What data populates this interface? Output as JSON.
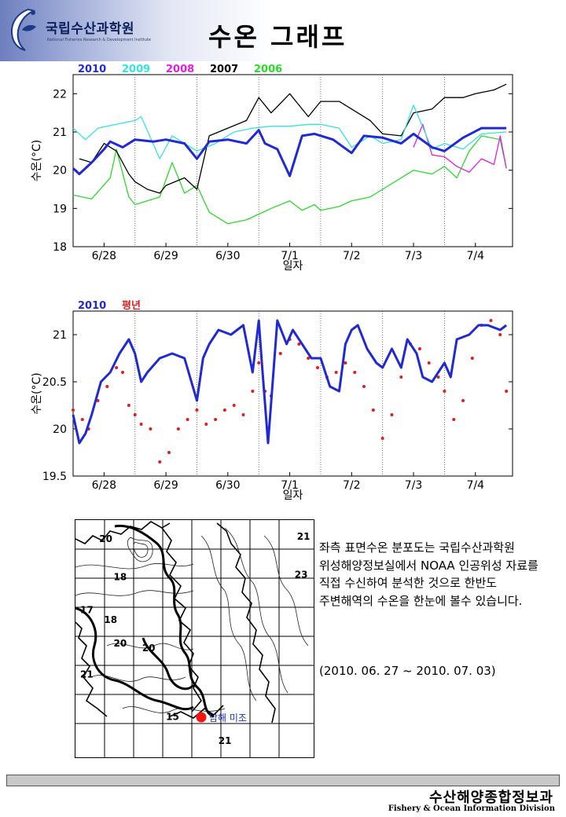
{
  "header": {
    "org_name": "국립수산과학원",
    "org_sub": "National Fisheries Research & Development Institute",
    "title": "수온 그래프"
  },
  "chart_data": [
    {
      "type": "line",
      "xlabel": "일자",
      "ylabel": "수온(°C)",
      "ylim": [
        18,
        22.5
      ],
      "yticks": [
        18,
        19,
        20,
        21,
        22
      ],
      "x_tick_labels": [
        "6/28",
        "6/29",
        "6/30",
        "7/1",
        "7/2",
        "7/3",
        "7/4"
      ],
      "xlim_days": [
        0,
        7.1
      ],
      "grid": "vertical dotted at day boundaries",
      "legend_placement": "top-left",
      "series": [
        {
          "name": "2010",
          "color": "#1f2ad6",
          "width": 3,
          "x": [
            0,
            0.1,
            0.3,
            0.5,
            0.6,
            0.8,
            1.0,
            1.3,
            1.5,
            1.8,
            2.0,
            2.2,
            2.5,
            2.8,
            3.0,
            3.1,
            3.3,
            3.5,
            3.7,
            3.9,
            4.2,
            4.5,
            4.7,
            5.0,
            5.3,
            5.5,
            5.8,
            6.0,
            6.3,
            6.6,
            7.0
          ],
          "y": [
            20.05,
            19.9,
            20.2,
            20.55,
            20.75,
            20.6,
            20.8,
            20.75,
            20.8,
            20.7,
            20.3,
            20.75,
            20.8,
            20.7,
            21.05,
            20.7,
            20.55,
            19.85,
            20.9,
            20.95,
            20.8,
            20.45,
            20.9,
            20.85,
            20.7,
            20.95,
            20.6,
            20.5,
            20.85,
            21.1,
            21.1
          ]
        },
        {
          "name": "2009",
          "color": "#35e2e2",
          "width": 1.3,
          "x": [
            0,
            0.2,
            0.4,
            0.7,
            1.0,
            1.1,
            1.4,
            1.6,
            2.0,
            2.3,
            2.6,
            2.9,
            3.2,
            3.5,
            3.8,
            4.0,
            4.3,
            4.5,
            4.8,
            5.0,
            5.3,
            5.5,
            5.8,
            6.0,
            6.3,
            6.6,
            7.0
          ],
          "y": [
            21.1,
            20.8,
            21.1,
            21.2,
            21.3,
            21.4,
            20.3,
            20.9,
            20.5,
            20.7,
            21.0,
            21.1,
            21.15,
            21.15,
            21.2,
            21.2,
            21.1,
            20.6,
            20.9,
            20.7,
            20.8,
            21.7,
            20.55,
            20.7,
            20.55,
            20.95,
            21.0
          ]
        },
        {
          "name": "2008",
          "color": "#e51ee0",
          "width": 1.3,
          "x": [
            5.5,
            5.65,
            5.8,
            6.0,
            6.2,
            6.4,
            6.6,
            6.8,
            6.9,
            7.0
          ],
          "y": [
            20.6,
            21.2,
            20.4,
            20.35,
            20.1,
            19.95,
            20.3,
            20.15,
            20.9,
            20.05
          ]
        },
        {
          "name": "2007",
          "color": "#000000",
          "width": 1.3,
          "x": [
            0.1,
            0.3,
            0.5,
            0.7,
            0.9,
            1.0,
            1.2,
            1.4,
            1.5,
            1.8,
            2.0,
            2.2,
            2.5,
            2.8,
            3.0,
            3.2,
            3.5,
            3.8,
            4.0,
            4.3,
            4.5,
            4.8,
            5.0,
            5.3,
            5.5,
            5.8,
            6.0,
            6.3,
            6.5,
            6.8,
            7.0
          ],
          "y": [
            20.3,
            20.2,
            20.7,
            20.5,
            19.9,
            19.7,
            19.5,
            19.4,
            19.6,
            19.8,
            19.5,
            20.9,
            21.1,
            21.3,
            21.9,
            21.5,
            22.0,
            21.4,
            21.8,
            21.8,
            21.6,
            21.3,
            20.95,
            20.9,
            21.5,
            21.6,
            21.9,
            21.9,
            22.0,
            22.1,
            22.25
          ]
        },
        {
          "name": "2006",
          "color": "#2adb2a",
          "width": 1.3,
          "x": [
            0,
            0.3,
            0.6,
            0.7,
            0.9,
            1.0,
            1.2,
            1.4,
            1.6,
            1.8,
            2.0,
            2.2,
            2.5,
            2.8,
            3.0,
            3.2,
            3.5,
            3.7,
            3.9,
            4.0,
            4.3,
            4.5,
            4.8,
            5.0,
            5.3,
            5.5,
            5.8,
            6.0,
            6.2,
            6.4,
            6.6,
            6.9,
            7.0
          ],
          "y": [
            19.35,
            19.25,
            19.8,
            20.55,
            19.3,
            19.1,
            19.2,
            19.3,
            20.2,
            19.4,
            19.6,
            18.9,
            18.6,
            18.7,
            18.85,
            19.0,
            19.2,
            18.95,
            19.1,
            18.95,
            19.05,
            19.2,
            19.3,
            19.5,
            19.8,
            20.0,
            19.9,
            20.1,
            19.8,
            20.5,
            20.9,
            20.8,
            20.05
          ]
        }
      ]
    },
    {
      "type": "line",
      "xlabel": "일자",
      "ylabel": "수온(°C)",
      "ylim": [
        19.5,
        21.25
      ],
      "yticks": [
        19.5,
        20,
        20.5,
        21
      ],
      "x_tick_labels": [
        "6/28",
        "6/29",
        "6/30",
        "7/1",
        "7/2",
        "7/3",
        "7/4"
      ],
      "xlim_days": [
        0,
        7.1
      ],
      "grid": "vertical dotted at day boundaries",
      "legend_placement": "top-left",
      "series": [
        {
          "name": "2010",
          "color": "#1f2ad6",
          "width": 3,
          "style": "line",
          "x": [
            0,
            0.1,
            0.2,
            0.3,
            0.45,
            0.6,
            0.75,
            0.9,
            1.0,
            1.1,
            1.2,
            1.4,
            1.6,
            1.8,
            2.0,
            2.1,
            2.2,
            2.35,
            2.55,
            2.75,
            2.9,
            3.0,
            3.05,
            3.15,
            3.3,
            3.45,
            3.55,
            3.7,
            3.85,
            4.0,
            4.15,
            4.3,
            4.4,
            4.5,
            4.6,
            4.75,
            4.9,
            5.0,
            5.15,
            5.3,
            5.4,
            5.55,
            5.65,
            5.8,
            6.0,
            6.1,
            6.2,
            6.4,
            6.55,
            6.7,
            6.9,
            7.0
          ],
          "y": [
            20.15,
            19.85,
            19.95,
            20.15,
            20.5,
            20.6,
            20.8,
            20.95,
            20.8,
            20.5,
            20.6,
            20.75,
            20.8,
            20.75,
            20.3,
            20.75,
            20.9,
            21.05,
            21.0,
            21.1,
            20.6,
            21.15,
            20.7,
            19.85,
            21.15,
            20.9,
            21.05,
            20.9,
            20.75,
            20.75,
            20.45,
            20.4,
            20.9,
            21.05,
            21.1,
            20.85,
            20.7,
            20.65,
            20.85,
            20.65,
            20.95,
            20.8,
            20.55,
            20.5,
            20.7,
            20.55,
            20.95,
            21.0,
            21.1,
            21.1,
            21.05,
            21.1
          ]
        },
        {
          "name": "평년",
          "color": "#e01e1e",
          "style": "dots",
          "x": [
            0,
            0.15,
            0.25,
            0.4,
            0.55,
            0.7,
            0.8,
            0.9,
            1.0,
            1.1,
            1.25,
            1.4,
            1.55,
            1.7,
            1.85,
            2.0,
            2.15,
            2.3,
            2.45,
            2.6,
            2.75,
            2.9,
            3.0,
            3.1,
            3.2,
            3.35,
            3.5,
            3.65,
            3.8,
            3.95,
            4.1,
            4.25,
            4.4,
            4.55,
            4.7,
            4.85,
            5.0,
            5.15,
            5.3,
            5.45,
            5.6,
            5.75,
            5.9,
            6.0,
            6.15,
            6.3,
            6.45,
            6.6,
            6.75,
            6.9,
            7.0
          ],
          "y": [
            20.2,
            20.1,
            20.0,
            20.3,
            20.45,
            20.65,
            20.6,
            20.25,
            20.15,
            20.05,
            20.0,
            19.65,
            19.75,
            20.0,
            20.1,
            20.2,
            20.05,
            20.1,
            20.2,
            20.25,
            20.15,
            20.4,
            20.7,
            20.4,
            20.35,
            20.8,
            20.95,
            20.9,
            20.75,
            20.65,
            20.55,
            20.6,
            20.7,
            20.6,
            20.45,
            20.2,
            19.9,
            20.15,
            20.55,
            20.9,
            20.85,
            20.7,
            20.55,
            20.4,
            20.1,
            20.3,
            20.75,
            21.1,
            21.15,
            21.0,
            20.4
          ]
        }
      ]
    }
  ],
  "map": {
    "contour_labels": [
      {
        "text": "20",
        "fx": 0.1,
        "fy": 0.06
      },
      {
        "text": "21",
        "fx": 0.93,
        "fy": 0.05
      },
      {
        "text": "18",
        "fx": 0.16,
        "fy": 0.22
      },
      {
        "text": "23",
        "fx": 0.92,
        "fy": 0.21
      },
      {
        "text": "17",
        "fx": 0.02,
        "fy": 0.36
      },
      {
        "text": "18",
        "fx": 0.12,
        "fy": 0.4
      },
      {
        "text": "20",
        "fx": 0.16,
        "fy": 0.5
      },
      {
        "text": "20",
        "fx": 0.28,
        "fy": 0.52
      },
      {
        "text": "21",
        "fx": 0.02,
        "fy": 0.63
      },
      {
        "text": "15",
        "fx": 0.38,
        "fy": 0.81
      },
      {
        "text": "21",
        "fx": 0.6,
        "fy": 0.91
      }
    ],
    "station_label": "남해 미조"
  },
  "description": "좌측 표면수온 분포도는 국립수산과학원 위성해양정보실에서 NOAA 인공위성 자료를 직접 수신하여 분석한 것으로 한반도 주변해역의 수온을 한눈에 볼수 있습니다.",
  "period": "(2010. 06. 27 ~ 2010. 07. 03)",
  "footer": {
    "division_kr": "수산해양종합정보과",
    "division_en": "Fishery & Ocean Information Division"
  }
}
